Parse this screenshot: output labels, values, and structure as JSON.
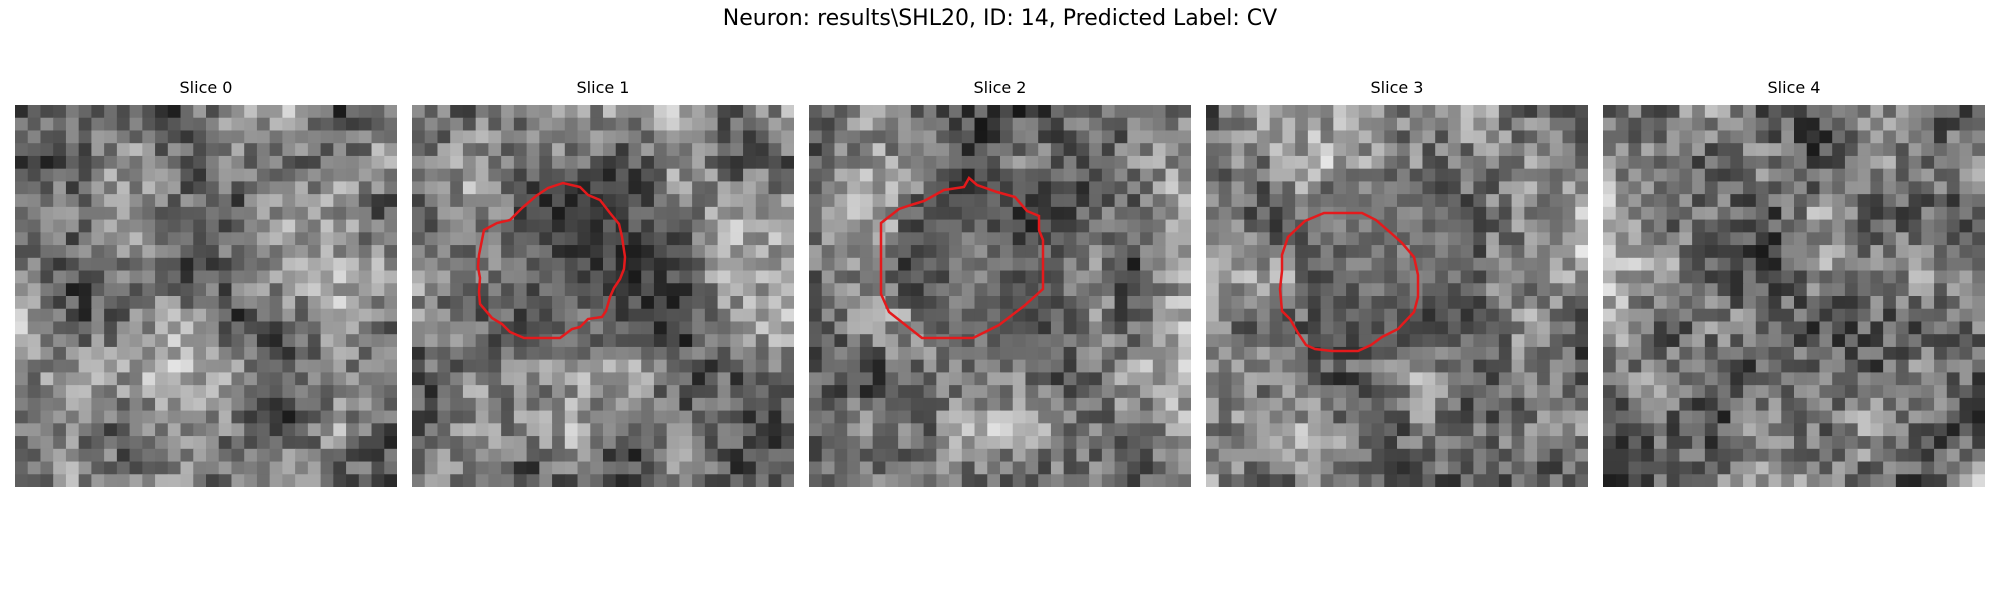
{
  "figure": {
    "title": "Neuron: results\\SHL20, ID: 14, Predicted Label: CV"
  },
  "panels": [
    {
      "label": "Slice 0",
      "seed": 11,
      "has_roi": false
    },
    {
      "label": "Slice 1",
      "seed": 23,
      "has_roi": true
    },
    {
      "label": "Slice 2",
      "seed": 37,
      "has_roi": true
    },
    {
      "label": "Slice 3",
      "seed": 51,
      "has_roi": true
    },
    {
      "label": "Slice 4",
      "seed": 67,
      "has_roi": false
    }
  ],
  "overlay": {
    "roi_color": "#e41a1c",
    "colormap": "gray"
  }
}
